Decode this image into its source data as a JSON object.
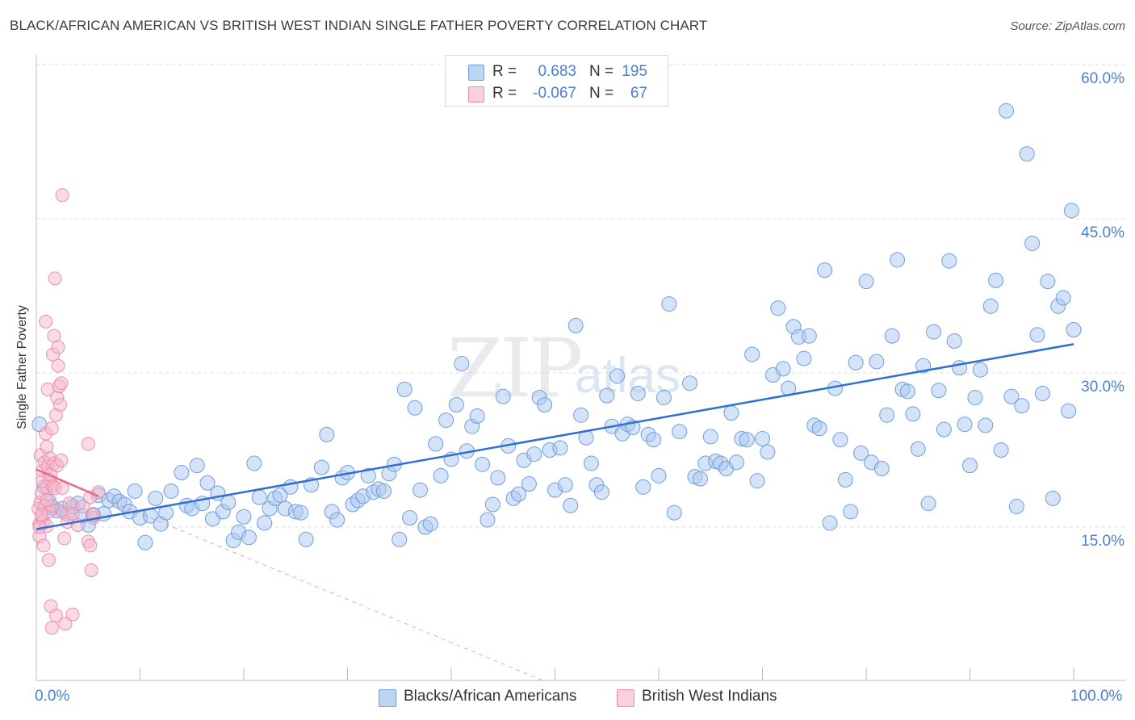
{
  "title": "BLACK/AFRICAN AMERICAN VS BRITISH WEST INDIAN SINGLE FATHER POVERTY CORRELATION CHART",
  "source": "Source: ZipAtlas.com",
  "watermark": {
    "part1": "ZIP",
    "part2": "atlas"
  },
  "legend": {
    "rows": [
      {
        "r_label": "R =",
        "r_value": "0.683",
        "n_label": "N =",
        "n_value": "195",
        "color": "#a9c8f0"
      },
      {
        "r_label": "R =",
        "r_value": "-0.067",
        "n_label": "N =",
        "n_value": "67",
        "color": "#f5b3c8"
      }
    ]
  },
  "colors": {
    "blue_fill": "#a9c8f0",
    "blue_stroke": "#6f9ede",
    "blue_line": "#2f6fd0",
    "pink_fill": "#f5b8cb",
    "pink_stroke": "#ec8fac",
    "pink_line": "#e56a92",
    "tick_text": "#4a7fd1",
    "grid": "#dcdcdc"
  },
  "chart_data": {
    "type": "scatter",
    "title": "BLACK/AFRICAN AMERICAN VS BRITISH WEST INDIAN SINGLE FATHER POVERTY CORRELATION CHART",
    "xlabel": "",
    "ylabel": "Single Father Poverty",
    "xlim": [
      0,
      100
    ],
    "ylim": [
      0,
      60
    ],
    "x_ticks": [
      "0.0%",
      "100.0%"
    ],
    "y_ticks": [
      "15.0%",
      "30.0%",
      "45.0%",
      "60.0%"
    ],
    "legend_position": "bottom",
    "grid": true,
    "series": [
      {
        "name": "Blacks/African Americans",
        "r": 0.683,
        "n": 195,
        "trend": {
          "x": [
            0,
            100
          ],
          "y": [
            14.8,
            32.8
          ]
        },
        "points": [
          [
            0.3,
            25.0
          ],
          [
            0.8,
            18.9
          ],
          [
            1.2,
            17.5
          ],
          [
            1.5,
            16.9
          ],
          [
            2.0,
            16.6
          ],
          [
            2.5,
            16.8
          ],
          [
            3.0,
            16.3
          ],
          [
            3.5,
            17.0
          ],
          [
            4.0,
            17.3
          ],
          [
            4.5,
            16.1
          ],
          [
            5.0,
            15.2
          ],
          [
            5.5,
            16.2
          ],
          [
            6.0,
            18.1
          ],
          [
            6.5,
            16.3
          ],
          [
            7.0,
            17.6
          ],
          [
            7.5,
            18.0
          ],
          [
            8.0,
            17.5
          ],
          [
            8.5,
            17.2
          ],
          [
            9.0,
            16.5
          ],
          [
            9.5,
            18.5
          ],
          [
            10.0,
            15.9
          ],
          [
            10.5,
            13.5
          ],
          [
            11.0,
            16.1
          ],
          [
            11.5,
            17.8
          ],
          [
            12.0,
            15.3
          ],
          [
            12.5,
            16.4
          ],
          [
            13.0,
            18.5
          ],
          [
            14.0,
            20.3
          ],
          [
            14.5,
            17.1
          ],
          [
            15.0,
            16.8
          ],
          [
            15.5,
            21.0
          ],
          [
            16.0,
            17.3
          ],
          [
            16.5,
            19.3
          ],
          [
            17.0,
            15.8
          ],
          [
            17.5,
            18.3
          ],
          [
            18.0,
            16.5
          ],
          [
            18.5,
            17.4
          ],
          [
            19.0,
            13.7
          ],
          [
            19.5,
            14.5
          ],
          [
            20.0,
            16.0
          ],
          [
            20.5,
            14.0
          ],
          [
            21.0,
            21.2
          ],
          [
            21.5,
            17.9
          ],
          [
            22.0,
            15.4
          ],
          [
            22.5,
            16.8
          ],
          [
            23.0,
            17.8
          ],
          [
            23.5,
            18.1
          ],
          [
            24.0,
            16.8
          ],
          [
            24.5,
            18.9
          ],
          [
            25.0,
            16.5
          ],
          [
            25.5,
            16.4
          ],
          [
            26.0,
            13.8
          ],
          [
            26.5,
            19.1
          ],
          [
            27.5,
            20.8
          ],
          [
            28.0,
            24.0
          ],
          [
            28.5,
            16.5
          ],
          [
            29.0,
            15.7
          ],
          [
            29.5,
            19.8
          ],
          [
            30.0,
            20.3
          ],
          [
            30.5,
            17.2
          ],
          [
            31.0,
            17.6
          ],
          [
            31.5,
            18.0
          ],
          [
            32.0,
            20.0
          ],
          [
            32.5,
            18.4
          ],
          [
            33.0,
            18.7
          ],
          [
            33.5,
            18.5
          ],
          [
            34.0,
            20.2
          ],
          [
            34.5,
            21.1
          ],
          [
            35.0,
            13.8
          ],
          [
            35.5,
            28.4
          ],
          [
            36.0,
            15.9
          ],
          [
            36.5,
            26.6
          ],
          [
            37.0,
            18.6
          ],
          [
            37.5,
            15.0
          ],
          [
            38.0,
            15.3
          ],
          [
            38.5,
            23.1
          ],
          [
            39.0,
            20.0
          ],
          [
            39.5,
            25.4
          ],
          [
            40.0,
            21.6
          ],
          [
            40.5,
            26.9
          ],
          [
            41.0,
            30.9
          ],
          [
            41.5,
            22.4
          ],
          [
            42.0,
            24.8
          ],
          [
            42.5,
            25.8
          ],
          [
            43.0,
            21.1
          ],
          [
            43.5,
            15.7
          ],
          [
            44.0,
            17.2
          ],
          [
            44.5,
            19.8
          ],
          [
            45.0,
            27.7
          ],
          [
            45.5,
            22.9
          ],
          [
            46.0,
            17.8
          ],
          [
            46.5,
            18.2
          ],
          [
            47.0,
            21.5
          ],
          [
            47.5,
            19.2
          ],
          [
            48.0,
            22.1
          ],
          [
            48.5,
            27.6
          ],
          [
            49.0,
            26.9
          ],
          [
            49.5,
            22.5
          ],
          [
            50.0,
            18.6
          ],
          [
            50.5,
            22.7
          ],
          [
            51.0,
            19.1
          ],
          [
            51.5,
            17.1
          ],
          [
            52.0,
            34.6
          ],
          [
            52.5,
            25.9
          ],
          [
            53.0,
            23.7
          ],
          [
            53.5,
            21.2
          ],
          [
            54.0,
            19.1
          ],
          [
            54.5,
            18.4
          ],
          [
            55.0,
            27.8
          ],
          [
            55.5,
            24.8
          ],
          [
            56.0,
            29.7
          ],
          [
            56.5,
            24.1
          ],
          [
            57.0,
            25.0
          ],
          [
            57.5,
            24.7
          ],
          [
            58.0,
            28.0
          ],
          [
            58.5,
            18.9
          ],
          [
            59.0,
            24.0
          ],
          [
            59.5,
            23.5
          ],
          [
            60.0,
            20.0
          ],
          [
            60.5,
            27.6
          ],
          [
            61.0,
            36.7
          ],
          [
            61.5,
            16.4
          ],
          [
            62.0,
            24.3
          ],
          [
            63.0,
            29.0
          ],
          [
            63.5,
            19.9
          ],
          [
            64.0,
            19.7
          ],
          [
            64.5,
            21.2
          ],
          [
            65.0,
            23.8
          ],
          [
            65.5,
            21.4
          ],
          [
            66.0,
            21.2
          ],
          [
            66.5,
            20.7
          ],
          [
            67.0,
            26.1
          ],
          [
            67.5,
            21.3
          ],
          [
            68.0,
            23.6
          ],
          [
            68.5,
            23.5
          ],
          [
            69.0,
            31.8
          ],
          [
            69.5,
            19.5
          ],
          [
            70.0,
            23.6
          ],
          [
            70.5,
            22.3
          ],
          [
            71.0,
            29.8
          ],
          [
            71.5,
            36.3
          ],
          [
            72.0,
            30.4
          ],
          [
            72.5,
            28.5
          ],
          [
            73.0,
            34.5
          ],
          [
            73.5,
            33.5
          ],
          [
            74.0,
            31.4
          ],
          [
            74.5,
            33.6
          ],
          [
            75.0,
            24.9
          ],
          [
            75.5,
            24.6
          ],
          [
            76.0,
            40.0
          ],
          [
            76.5,
            15.4
          ],
          [
            77.0,
            28.5
          ],
          [
            77.5,
            23.5
          ],
          [
            78.0,
            19.6
          ],
          [
            78.5,
            16.5
          ],
          [
            79.0,
            31.0
          ],
          [
            79.5,
            22.2
          ],
          [
            80.0,
            38.9
          ],
          [
            80.5,
            21.3
          ],
          [
            81.0,
            31.1
          ],
          [
            81.5,
            20.7
          ],
          [
            82.0,
            25.9
          ],
          [
            82.5,
            33.6
          ],
          [
            83.0,
            41.0
          ],
          [
            83.5,
            28.4
          ],
          [
            84.0,
            28.2
          ],
          [
            84.5,
            26.0
          ],
          [
            85.0,
            22.6
          ],
          [
            85.5,
            30.7
          ],
          [
            86.0,
            17.3
          ],
          [
            86.5,
            34.0
          ],
          [
            87.0,
            28.3
          ],
          [
            87.5,
            24.5
          ],
          [
            88.0,
            40.9
          ],
          [
            88.5,
            33.1
          ],
          [
            89.0,
            30.5
          ],
          [
            89.5,
            25.0
          ],
          [
            90.0,
            21.0
          ],
          [
            90.5,
            27.6
          ],
          [
            91.0,
            30.3
          ],
          [
            91.5,
            24.9
          ],
          [
            92.0,
            36.5
          ],
          [
            92.5,
            39.0
          ],
          [
            93.0,
            22.5
          ],
          [
            93.5,
            55.5
          ],
          [
            94.0,
            27.7
          ],
          [
            94.5,
            17.0
          ],
          [
            95.0,
            26.8
          ],
          [
            95.5,
            51.3
          ],
          [
            96.0,
            42.6
          ],
          [
            96.5,
            33.7
          ],
          [
            97.0,
            28.0
          ],
          [
            97.5,
            38.9
          ],
          [
            98.0,
            17.8
          ],
          [
            98.5,
            36.5
          ],
          [
            99.0,
            37.3
          ],
          [
            99.5,
            26.3
          ],
          [
            99.8,
            45.8
          ],
          [
            100.0,
            34.2
          ]
        ]
      },
      {
        "name": "British West Indians",
        "r": -0.067,
        "n": 67,
        "trend": {
          "x": [
            0,
            6
          ],
          "y": [
            20.6,
            18.0
          ],
          "dashed_extension": {
            "x": [
              6,
              49
            ],
            "y": [
              18.0,
              0
            ]
          }
        },
        "points": [
          [
            0.2,
            16.8
          ],
          [
            0.3,
            15.3
          ],
          [
            0.3,
            14.1
          ],
          [
            0.4,
            17.4
          ],
          [
            0.4,
            22.0
          ],
          [
            0.5,
            18.3
          ],
          [
            0.5,
            16.0
          ],
          [
            0.6,
            20.5
          ],
          [
            0.6,
            19.5
          ],
          [
            0.7,
            15.6
          ],
          [
            0.7,
            13.2
          ],
          [
            0.8,
            21.3
          ],
          [
            0.8,
            17.0
          ],
          [
            0.9,
            35.0
          ],
          [
            0.9,
            24.1
          ],
          [
            1.0,
            22.8
          ],
          [
            1.0,
            18.9
          ],
          [
            1.0,
            15.1
          ],
          [
            1.1,
            28.4
          ],
          [
            1.1,
            20.9
          ],
          [
            1.2,
            16.5
          ],
          [
            1.2,
            11.8
          ],
          [
            1.3,
            21.7
          ],
          [
            1.3,
            19.6
          ],
          [
            1.4,
            20.1
          ],
          [
            1.4,
            7.3
          ],
          [
            1.5,
            24.6
          ],
          [
            1.5,
            17.1
          ],
          [
            1.5,
            5.2
          ],
          [
            1.6,
            31.8
          ],
          [
            1.6,
            19.0
          ],
          [
            1.7,
            33.6
          ],
          [
            1.7,
            21.2
          ],
          [
            1.8,
            39.2
          ],
          [
            1.8,
            18.8
          ],
          [
            1.9,
            6.4
          ],
          [
            1.9,
            25.9
          ],
          [
            2.0,
            27.6
          ],
          [
            2.0,
            21.0
          ],
          [
            2.1,
            30.7
          ],
          [
            2.1,
            32.5
          ],
          [
            2.2,
            28.7
          ],
          [
            2.3,
            26.9
          ],
          [
            2.4,
            29.0
          ],
          [
            2.4,
            21.5
          ],
          [
            2.5,
            47.3
          ],
          [
            2.5,
            18.8
          ],
          [
            2.6,
            16.4
          ],
          [
            2.7,
            13.9
          ],
          [
            2.8,
            5.6
          ],
          [
            3.0,
            15.5
          ],
          [
            3.2,
            17.3
          ],
          [
            3.5,
            16.3
          ],
          [
            3.5,
            6.5
          ],
          [
            4.0,
            15.2
          ],
          [
            4.5,
            17.0
          ],
          [
            5.0,
            23.1
          ],
          [
            5.0,
            13.6
          ],
          [
            5.2,
            17.9
          ],
          [
            5.2,
            13.2
          ],
          [
            5.3,
            10.8
          ],
          [
            5.5,
            15.9
          ],
          [
            5.5,
            16.2
          ],
          [
            6.0,
            18.4
          ],
          [
            0.5,
            16.2
          ],
          [
            0.3,
            15.0
          ],
          [
            1.0,
            17.6
          ]
        ]
      }
    ]
  }
}
